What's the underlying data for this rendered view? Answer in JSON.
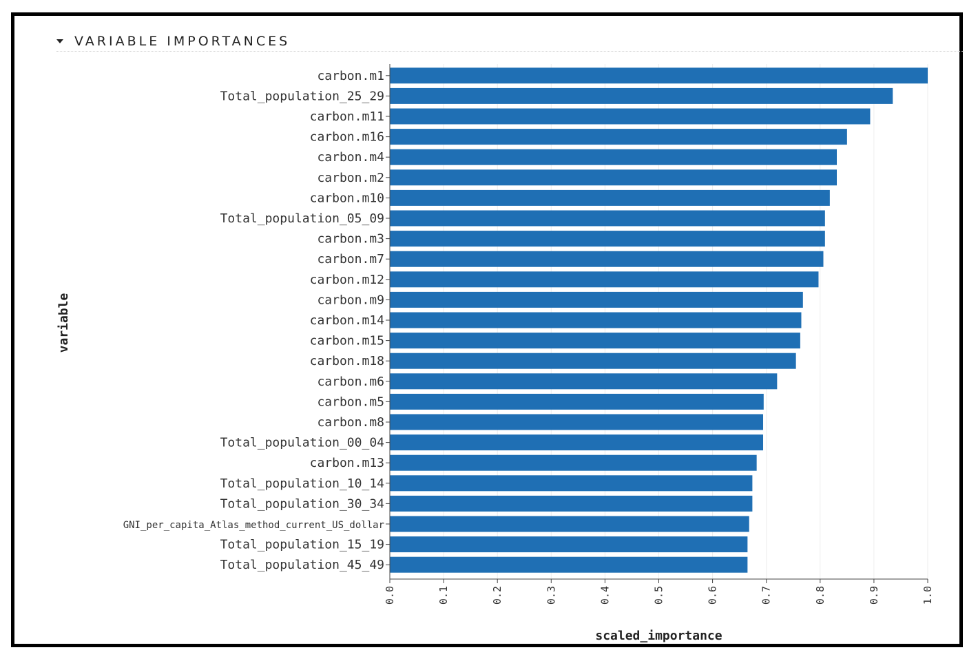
{
  "section": {
    "title": "VARIABLE IMPORTANCES",
    "toggle_icon": "caret-down-icon"
  },
  "chart_data": {
    "type": "bar",
    "orientation": "horizontal",
    "title": "",
    "xlabel": "scaled_importance",
    "ylabel": "variable",
    "xlim": [
      0,
      1.0
    ],
    "xticks": [
      "0.0",
      "0.1",
      "0.2",
      "0.3",
      "0.4",
      "0.5",
      "0.6",
      "0.7",
      "0.8",
      "0.9",
      "1.0"
    ],
    "grid": true,
    "bar_color": "#1f6fb4",
    "categories": [
      "carbon.m1",
      "Total_population_25_29",
      "carbon.m11",
      "carbon.m16",
      "carbon.m4",
      "carbon.m2",
      "carbon.m10",
      "Total_population_05_09",
      "carbon.m3",
      "carbon.m7",
      "carbon.m12",
      "carbon.m9",
      "carbon.m14",
      "carbon.m15",
      "carbon.m18",
      "carbon.m6",
      "carbon.m5",
      "carbon.m8",
      "Total_population_00_04",
      "carbon.m13",
      "Total_population_10_14",
      "Total_population_30_34",
      "GNI_per_capita_Atlas_method_current_US_dollar",
      "Total_population_15_19",
      "Total_population_45_49"
    ],
    "values": [
      1.0,
      0.935,
      0.893,
      0.85,
      0.831,
      0.831,
      0.818,
      0.809,
      0.809,
      0.806,
      0.797,
      0.768,
      0.765,
      0.763,
      0.755,
      0.72,
      0.695,
      0.694,
      0.694,
      0.682,
      0.674,
      0.674,
      0.668,
      0.665,
      0.665
    ]
  }
}
